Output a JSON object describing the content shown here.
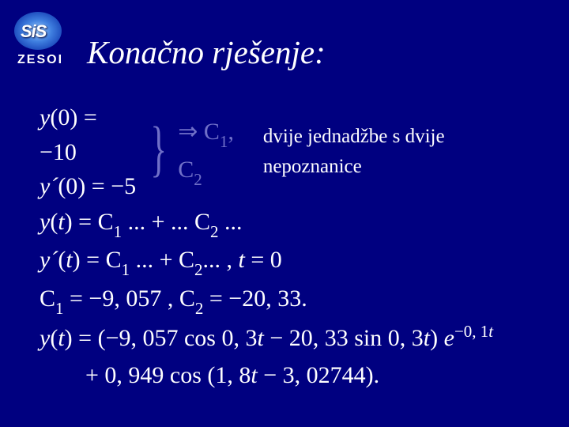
{
  "logo": {
    "main": "SiS",
    "sub": "ZESOI"
  },
  "title": "Konačno rješenje:",
  "cond1_lhs": "y",
  "cond1_arg": "(0)",
  "cond1_eq": " = −10",
  "cond2_lhs": "y´",
  "cond2_arg": "(0)",
  "cond2_eq": " = −5",
  "imply": " ⇒ C",
  "imply_s1": "1",
  "imply_mid": ", C",
  "imply_s2": "2",
  "note": "  dvije jednadžbe s dvije nepoznanice",
  "l3_a": "y",
  "l3_b": "(",
  "l3_c": "t",
  "l3_d": ") = C",
  "l3_e": "1",
  "l3_f": " ... + ... C",
  "l3_g": "2",
  "l3_h": " ...",
  "l4_a": "y´",
  "l4_b": "(",
  "l4_c": "t",
  "l4_d": ") = C",
  "l4_e": "1",
  "l4_f": " ... + C",
  "l4_g": "2",
  "l4_h": "... , ",
  "l4_i": "t",
  "l4_j": " = 0",
  "l5_a": "C",
  "l5_b": "1",
  "l5_c": " = −9, 057 ,  C",
  "l5_d": "2",
  "l5_e": " = −20, 33.",
  "l6_a": "y",
  "l6_b": "(",
  "l6_c": "t",
  "l6_d": ") = (−9, 057 cos 0, 3",
  "l6_e": "t",
  "l6_f": " − 20, 33 sin 0, 3",
  "l6_g": "t",
  "l6_h": ") ",
  "l6_i": "e",
  "l6_sup": "−0, 1",
  "l6_sup2": "t",
  "l7_a": "+ 0, 949 cos (1, 8",
  "l7_b": "t",
  "l7_c": " − 3, 02744).",
  "style": {
    "bg": "#000080",
    "text": "#ffffff",
    "faded": "#7070c8",
    "title_fontsize": 41,
    "body_fontsize": 30,
    "note_fontsize": 25,
    "font": "Times New Roman"
  }
}
